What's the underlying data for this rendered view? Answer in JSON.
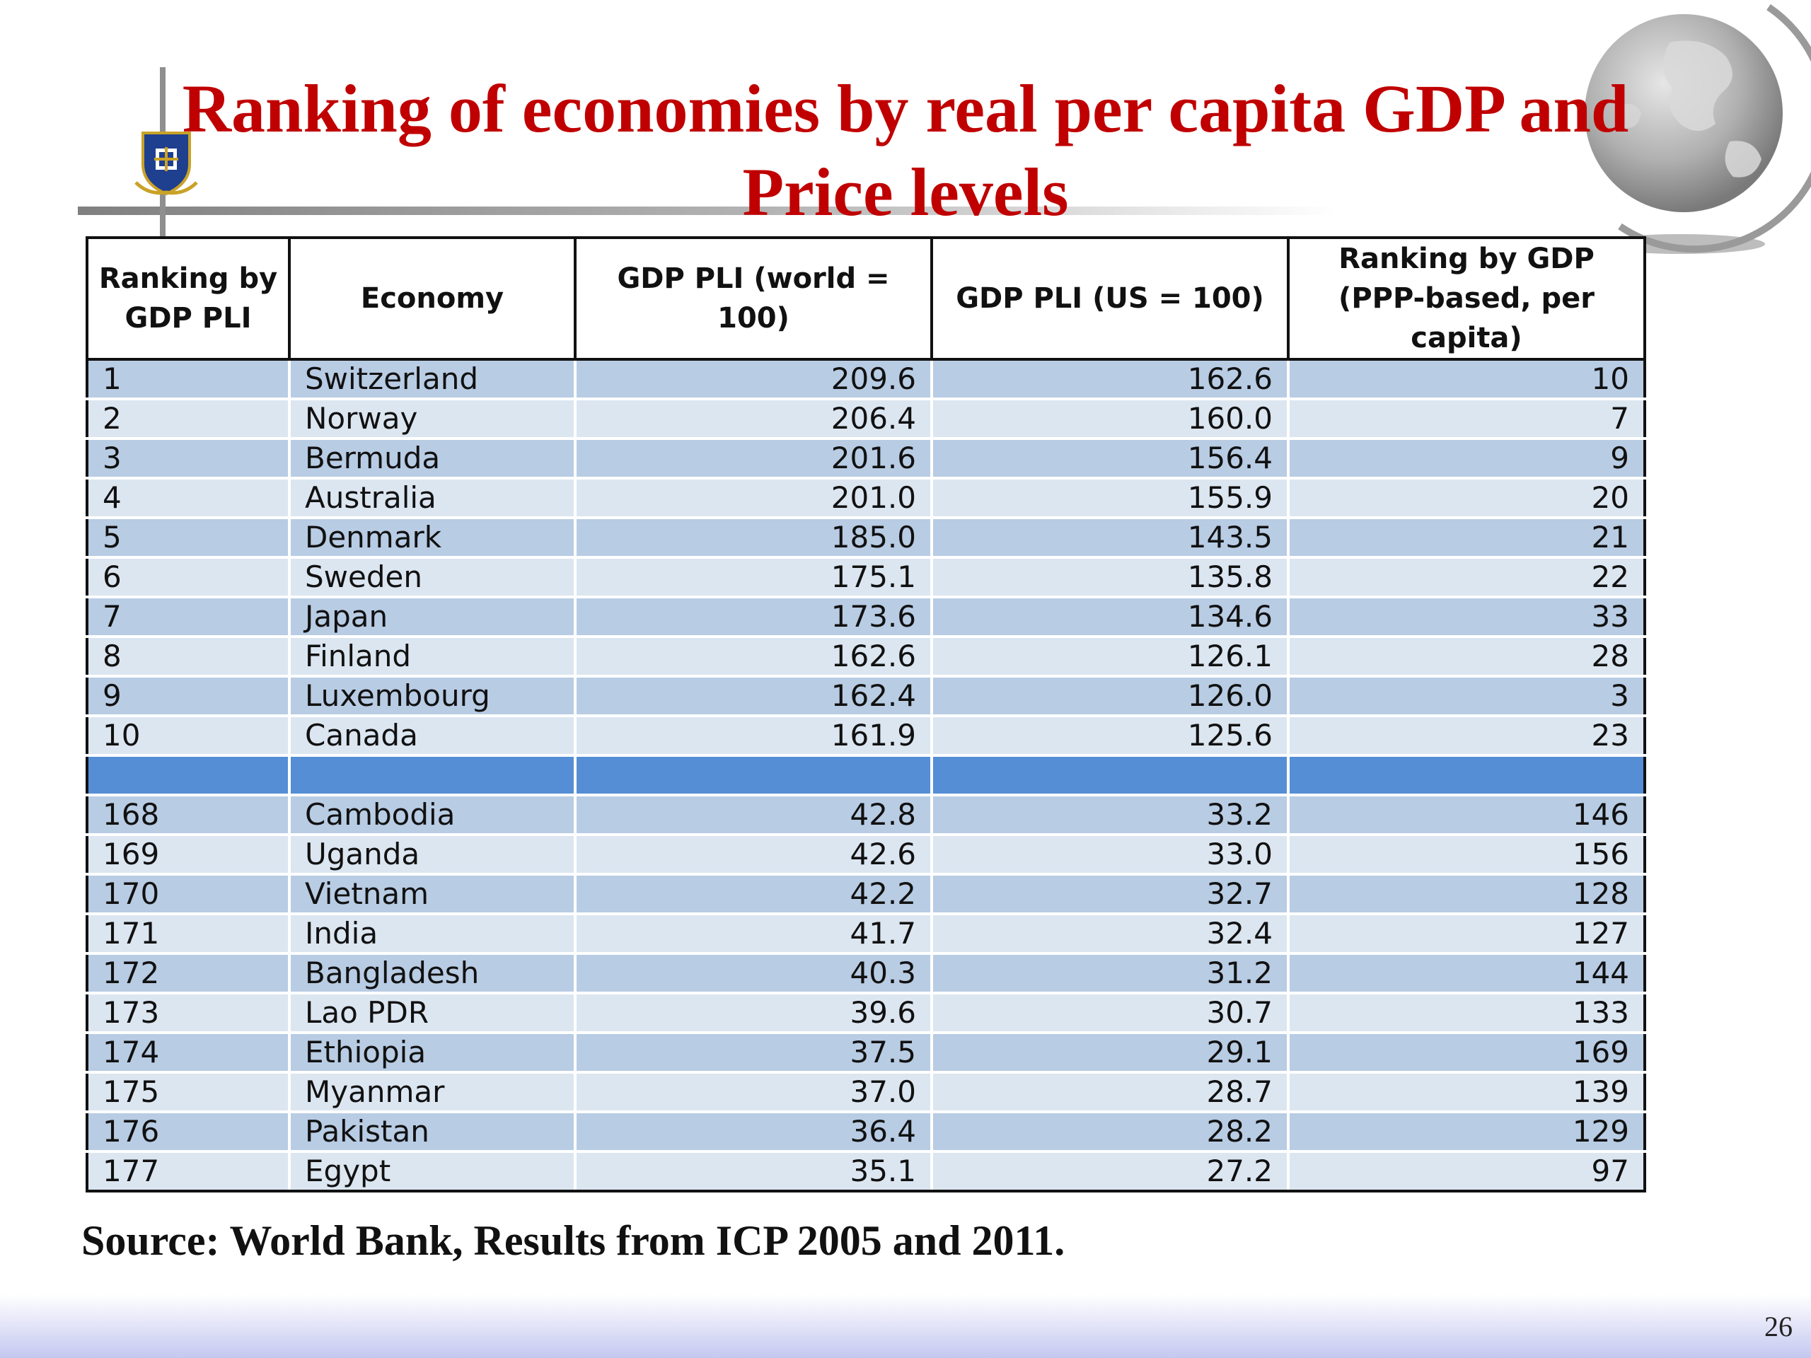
{
  "slide": {
    "title_line1": "Ranking of economies by real per capita GDP and",
    "title_line2": "Price levels",
    "source": "Source: World Bank, Results from ICP 2005 and 2011.",
    "page_number": "26"
  },
  "table": {
    "headers": {
      "rank_pli": "Ranking by GDP PLI",
      "economy": "Economy",
      "pli_world": "GDP PLI (world = 100)",
      "pli_us": "GDP PLI (US = 100)",
      "rank_gdp": "Ranking by GDP (PPP-based, per capita)"
    },
    "rows": [
      {
        "rank": "1",
        "economy": "Switzerland",
        "pli_world": "209.6",
        "pli_us": "162.6",
        "gdp_rank": "10"
      },
      {
        "rank": "2",
        "economy": "Norway",
        "pli_world": "206.4",
        "pli_us": "160.0",
        "gdp_rank": "7"
      },
      {
        "rank": "3",
        "economy": "Bermuda",
        "pli_world": "201.6",
        "pli_us": "156.4",
        "gdp_rank": "9"
      },
      {
        "rank": "4",
        "economy": "Australia",
        "pli_world": "201.0",
        "pli_us": "155.9",
        "gdp_rank": "20"
      },
      {
        "rank": "5",
        "economy": "Denmark",
        "pli_world": "185.0",
        "pli_us": "143.5",
        "gdp_rank": "21"
      },
      {
        "rank": "6",
        "economy": "Sweden",
        "pli_world": "175.1",
        "pli_us": "135.8",
        "gdp_rank": "22"
      },
      {
        "rank": "7",
        "economy": "Japan",
        "pli_world": "173.6",
        "pli_us": "134.6",
        "gdp_rank": "33"
      },
      {
        "rank": "8",
        "economy": "Finland",
        "pli_world": "162.6",
        "pli_us": "126.1",
        "gdp_rank": "28"
      },
      {
        "rank": "9",
        "economy": "Luxembourg",
        "pli_world": "162.4",
        "pli_us": "126.0",
        "gdp_rank": "3"
      },
      {
        "rank": "10",
        "economy": "Canada",
        "pli_world": "161.9",
        "pli_us": "125.6",
        "gdp_rank": "23"
      },
      {
        "rank": "168",
        "economy": "Cambodia",
        "pli_world": "42.8",
        "pli_us": "33.2",
        "gdp_rank": "146"
      },
      {
        "rank": "169",
        "economy": "Uganda",
        "pli_world": "42.6",
        "pli_us": "33.0",
        "gdp_rank": "156"
      },
      {
        "rank": "170",
        "economy": "Vietnam",
        "pli_world": "42.2",
        "pli_us": "32.7",
        "gdp_rank": "128"
      },
      {
        "rank": "171",
        "economy": "India",
        "pli_world": "41.7",
        "pli_us": "32.4",
        "gdp_rank": "127"
      },
      {
        "rank": "172",
        "economy": "Bangladesh",
        "pli_world": "40.3",
        "pli_us": "31.2",
        "gdp_rank": "144"
      },
      {
        "rank": "173",
        "economy": "Lao PDR",
        "pli_world": "39.6",
        "pli_us": "30.7",
        "gdp_rank": "133"
      },
      {
        "rank": "174",
        "economy": "Ethiopia",
        "pli_world": "37.5",
        "pli_us": "29.1",
        "gdp_rank": "169"
      },
      {
        "rank": "175",
        "economy": "Myanmar",
        "pli_world": "37.0",
        "pli_us": "28.7",
        "gdp_rank": "139"
      },
      {
        "rank": "176",
        "economy": "Pakistan",
        "pli_world": "36.4",
        "pli_us": "28.2",
        "gdp_rank": "129"
      },
      {
        "rank": "177",
        "economy": "Egypt",
        "pli_world": "35.1",
        "pli_us": "27.2",
        "gdp_rank": "97"
      }
    ]
  },
  "decor": {
    "logo_icon": "university-crest-icon",
    "globe_icon": "globe-icon",
    "title_color": "#c00000",
    "row_color_dark": "#b8cce4",
    "row_color_light": "#dce6f1",
    "separator_color": "#558ed5"
  }
}
